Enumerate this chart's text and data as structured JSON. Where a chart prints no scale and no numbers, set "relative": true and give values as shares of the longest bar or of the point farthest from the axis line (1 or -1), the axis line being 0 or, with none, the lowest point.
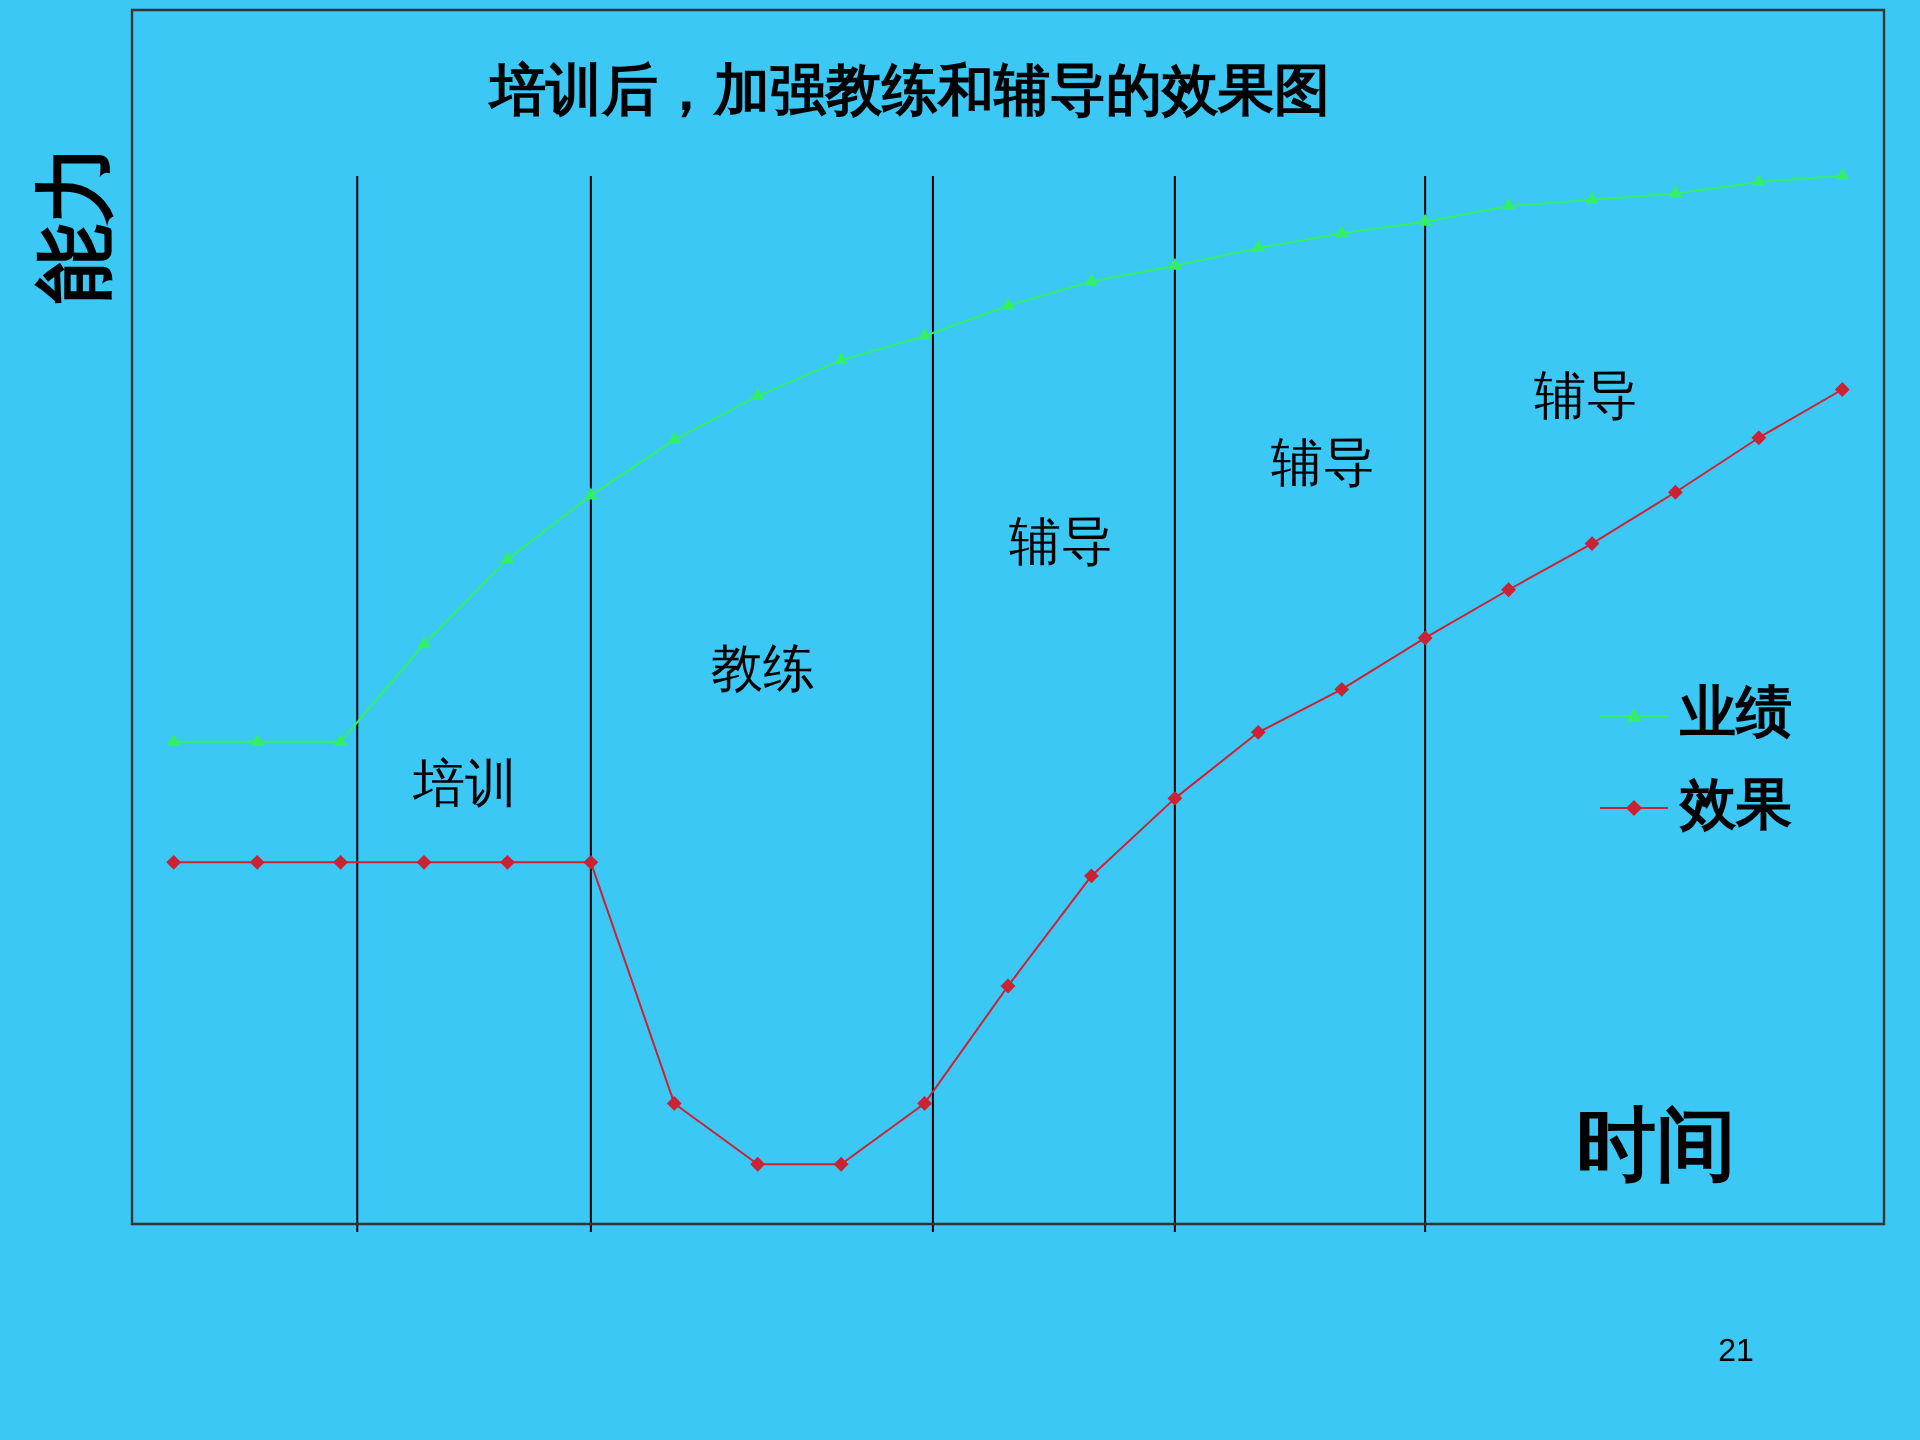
{
  "chart_data": {
    "type": "line",
    "title": "培训后，加强教练和辅导的效果图",
    "xlabel": "时间",
    "ylabel": "能力",
    "relative": true,
    "legend": "right",
    "grid": "x",
    "categories": [
      null,
      null,
      null,
      null,
      null,
      null,
      null,
      null,
      null,
      null,
      null,
      null,
      null,
      null,
      null,
      null,
      null,
      null,
      null,
      null,
      null
    ],
    "series": [
      {
        "name": "业绩",
        "color": "#33ee66",
        "marker": "triangle",
        "values": [
          0.46,
          0.46,
          0.46,
          0.553,
          0.634,
          0.695,
          0.748,
          0.79,
          0.824,
          0.847,
          0.876,
          0.899,
          0.914,
          0.931,
          0.945,
          0.956,
          0.971,
          0.977,
          0.983,
          0.994,
          1
        ]
      },
      {
        "name": "效果",
        "color": "#cc2233",
        "marker": "diamond",
        "values": [
          0.345,
          0.345,
          0.345,
          0.345,
          0.345,
          0.345,
          0.115,
          0.057,
          0.057,
          0.115,
          0.227,
          0.332,
          0.406,
          0.469,
          0.51,
          0.559,
          0.605,
          0.649,
          0.698,
          0.75,
          0.796
        ]
      }
    ],
    "annotations": [
      "培训",
      "教练",
      "辅导",
      "辅导",
      "辅导",
      "21"
    ]
  }
}
